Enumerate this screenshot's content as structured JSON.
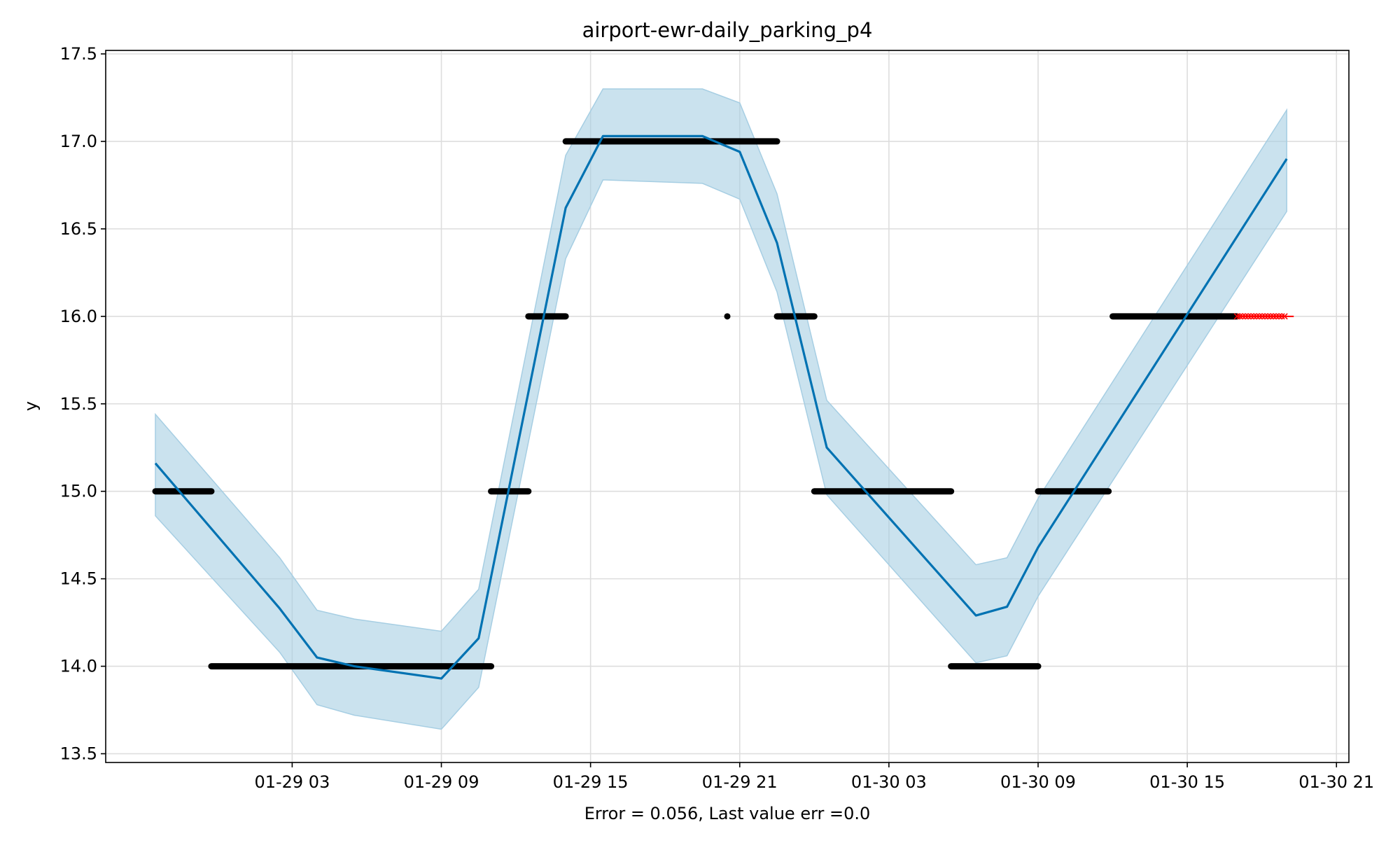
{
  "chart_data": {
    "type": "line",
    "title": "airport-ewr-daily_parking_p4",
    "xlabel": "Error = 0.056, Last value err =0.0",
    "ylabel": "y",
    "x_axis_type": "datetime",
    "xlim": [
      "2024-01-28 19:30",
      "2024-01-30 21:30"
    ],
    "ylim": [
      13.45,
      17.52
    ],
    "x_ticks": [
      "2024-01-29 03:00",
      "2024-01-29 09:00",
      "2024-01-29 15:00",
      "2024-01-29 21:00",
      "2024-01-30 03:00",
      "2024-01-30 09:00",
      "2024-01-30 15:00",
      "2024-01-30 21:00"
    ],
    "x_tick_labels": [
      "01-29 03",
      "01-29 09",
      "01-29 15",
      "01-29 21",
      "01-30 03",
      "01-30 09",
      "01-30 15",
      "01-30 21"
    ],
    "y_ticks": [
      13.5,
      14.0,
      14.5,
      15.0,
      15.5,
      16.0,
      16.5,
      17.0,
      17.5
    ],
    "y_tick_labels": [
      "13.5",
      "14.0",
      "14.5",
      "15.0",
      "15.5",
      "16.0",
      "16.5",
      "17.0",
      "17.5"
    ],
    "grid": true,
    "legend": "none",
    "colors": {
      "forecast": "#0072b2",
      "interval": "#a6cee3",
      "actual": "#000000",
      "test": "#ff0000",
      "grid": "#dddddd"
    },
    "series": [
      {
        "kind": "forecast_line",
        "x": [
          "2024-01-28 21:30",
          "2024-01-29 02:30",
          "2024-01-29 04:00",
          "2024-01-29 05:30",
          "2024-01-29 09:00",
          "2024-01-29 10:30",
          "2024-01-29 14:00",
          "2024-01-29 15:30",
          "2024-01-29 19:30",
          "2024-01-29 21:00",
          "2024-01-29 22:30",
          "2024-01-30 00:30",
          "2024-01-30 06:30",
          "2024-01-30 07:45",
          "2024-01-30 09:00",
          "2024-01-30 19:00"
        ],
        "y": [
          15.16,
          14.33,
          14.05,
          14.0,
          13.93,
          14.16,
          16.62,
          17.03,
          17.03,
          16.94,
          16.42,
          15.25,
          14.29,
          14.34,
          14.68,
          16.9
        ]
      },
      {
        "kind": "interval",
        "x": [
          "2024-01-28 21:30",
          "2024-01-29 02:30",
          "2024-01-29 04:00",
          "2024-01-29 05:30",
          "2024-01-29 09:00",
          "2024-01-29 10:30",
          "2024-01-29 14:00",
          "2024-01-29 15:30",
          "2024-01-29 19:30",
          "2024-01-29 21:00",
          "2024-01-29 22:30",
          "2024-01-30 00:30",
          "2024-01-30 06:30",
          "2024-01-30 07:45",
          "2024-01-30 09:00",
          "2024-01-30 19:00"
        ],
        "lower": [
          14.86,
          14.08,
          13.78,
          13.72,
          13.64,
          13.88,
          16.33,
          16.78,
          16.76,
          16.67,
          16.14,
          14.98,
          14.02,
          14.06,
          14.4,
          16.6
        ],
        "upper": [
          15.44,
          14.62,
          14.32,
          14.27,
          14.2,
          14.44,
          16.92,
          17.3,
          17.3,
          17.22,
          16.7,
          15.52,
          14.58,
          14.62,
          14.96,
          17.18
        ]
      },
      {
        "kind": "actual_segments",
        "segments": [
          {
            "start": "2024-01-28 21:30",
            "end": "2024-01-28 23:45",
            "y": 15.0
          },
          {
            "start": "2024-01-28 23:45",
            "end": "2024-01-29 11:00",
            "y": 14.0
          },
          {
            "start": "2024-01-29 11:00",
            "end": "2024-01-29 12:30",
            "y": 15.0
          },
          {
            "start": "2024-01-29 12:30",
            "end": "2024-01-29 14:00",
            "y": 16.0
          },
          {
            "start": "2024-01-29 14:00",
            "end": "2024-01-29 22:30",
            "y": 17.0
          },
          {
            "start": "2024-01-29 20:30",
            "end": "2024-01-29 20:30",
            "y": 16.0
          },
          {
            "start": "2024-01-29 22:30",
            "end": "2024-01-30 00:00",
            "y": 16.0
          },
          {
            "start": "2024-01-30 00:00",
            "end": "2024-01-30 05:30",
            "y": 15.0
          },
          {
            "start": "2024-01-30 05:30",
            "end": "2024-01-30 09:00",
            "y": 14.0
          },
          {
            "start": "2024-01-30 09:00",
            "end": "2024-01-30 11:50",
            "y": 15.0
          },
          {
            "start": "2024-01-30 12:00",
            "end": "2024-01-30 17:00",
            "y": 16.0
          }
        ]
      },
      {
        "kind": "test_points",
        "start": "2024-01-30 17:00",
        "end": "2024-01-30 19:00",
        "y": 16.0
      }
    ]
  }
}
